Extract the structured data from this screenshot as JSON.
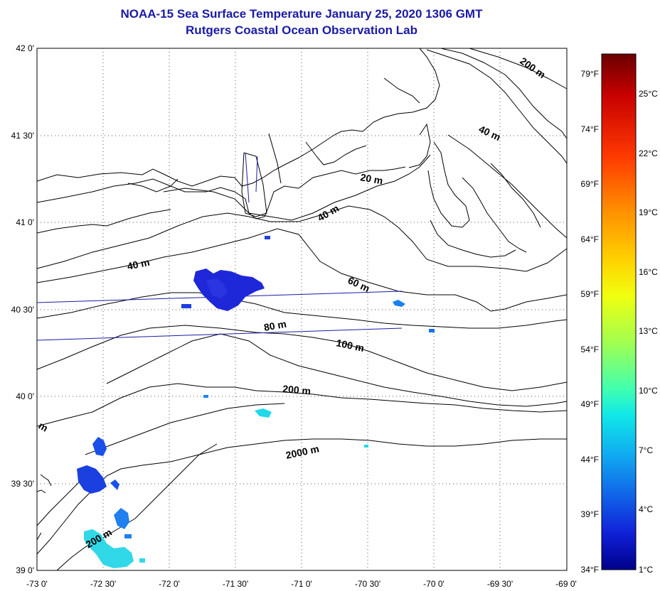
{
  "title": "NOAA-15 Sea Surface Temperature January 25, 2020 1306 GMT",
  "subtitle": "Rutgers Coastal Ocean Observation Lab",
  "lat_ticks": [
    "42 0'",
    "41 30'",
    "41 0'",
    "40 30'",
    "40 0'",
    "39 30'",
    "39 0'"
  ],
  "lon_ticks": [
    "-73 0'",
    "-72 30'",
    "-72 0'",
    "-71 30'",
    "-71 0'",
    "-70 30'",
    "-70 0'",
    "-69 30'",
    "-69 0'"
  ],
  "lat_range": [
    39.0,
    42.0
  ],
  "lon_range": [
    -73.0,
    -69.0
  ],
  "contour_labels": [
    "20 m",
    "40 m",
    "40 m",
    "40 m",
    "60 m",
    "80 m",
    "100 m",
    "200 m",
    "200 m",
    "200 m",
    "2000 m",
    "m"
  ],
  "colorbar": {
    "fahrenheit": [
      "79°F",
      "74°F",
      "69°F",
      "64°F",
      "59°F",
      "54°F",
      "49°F",
      "44°F",
      "39°F",
      "34°F"
    ],
    "celsius": [
      "25°C",
      "22°C",
      "19°C",
      "16°C",
      "13°C",
      "10°C",
      "7°C",
      "4°C",
      "1°C"
    ],
    "colors": [
      "#6b0000",
      "#c80000",
      "#ff3a00",
      "#ff8c00",
      "#ffd200",
      "#f0ff10",
      "#a0ff50",
      "#40ffb0",
      "#10e8e8",
      "#10a8f0",
      "#1060e8",
      "#1020d8",
      "#00008a"
    ]
  },
  "grid": "dotted"
}
